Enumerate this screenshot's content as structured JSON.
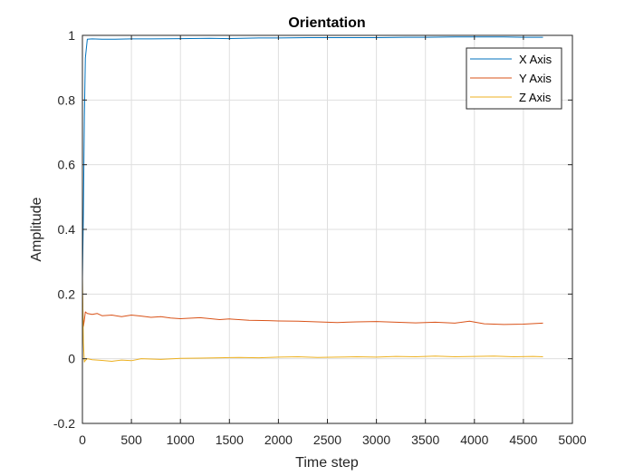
{
  "chart_data": {
    "type": "line",
    "title": "Orientation",
    "xlabel": "Time step",
    "ylabel": "Amplitude",
    "xlim": [
      0,
      5000
    ],
    "ylim": [
      -0.2,
      1
    ],
    "xticks": [
      0,
      500,
      1000,
      1500,
      2000,
      2500,
      3000,
      3500,
      4000,
      4500,
      5000
    ],
    "yticks": [
      -0.2,
      0,
      0.2,
      0.4,
      0.6,
      0.8,
      1
    ],
    "xtick_labels": [
      "0",
      "500",
      "1000",
      "1500",
      "2000",
      "2500",
      "3000",
      "3500",
      "4000",
      "4500",
      "5000"
    ],
    "ytick_labels": [
      "-0.2",
      "0",
      "0.2",
      "0.4",
      "0.6",
      "0.8",
      "1"
    ],
    "grid": true,
    "legend_position": "top-right",
    "series": [
      {
        "name": "X Axis",
        "color": "#0072BD",
        "x": [
          0,
          10,
          20,
          30,
          50,
          100,
          200,
          300,
          500,
          700,
          1000,
          1300,
          1500,
          1800,
          2000,
          2300,
          2500,
          2800,
          3000,
          3300,
          3500,
          3800,
          4000,
          4300,
          4500,
          4700
        ],
        "y": [
          0.25,
          0.45,
          0.75,
          0.93,
          0.988,
          0.989,
          0.988,
          0.988,
          0.989,
          0.989,
          0.99,
          0.991,
          0.99,
          0.992,
          0.992,
          0.993,
          0.993,
          0.993,
          0.993,
          0.994,
          0.994,
          0.995,
          0.995,
          0.995,
          0.994,
          0.994
        ]
      },
      {
        "name": "Y Axis",
        "color": "#D95319",
        "x": [
          0,
          10,
          20,
          30,
          50,
          100,
          150,
          200,
          300,
          400,
          500,
          600,
          700,
          800,
          900,
          1000,
          1200,
          1400,
          1500,
          1700,
          1900,
          2000,
          2200,
          2400,
          2600,
          2800,
          3000,
          3200,
          3400,
          3600,
          3800,
          3950,
          4100,
          4300,
          4500,
          4700
        ],
        "y": [
          0.2,
          0.1,
          0.12,
          0.145,
          0.14,
          0.137,
          0.14,
          0.133,
          0.135,
          0.13,
          0.135,
          0.132,
          0.128,
          0.13,
          0.126,
          0.124,
          0.127,
          0.121,
          0.123,
          0.119,
          0.118,
          0.117,
          0.116,
          0.114,
          0.112,
          0.114,
          0.115,
          0.113,
          0.111,
          0.113,
          0.11,
          0.116,
          0.108,
          0.106,
          0.107,
          0.11
        ]
      },
      {
        "name": "Z Axis",
        "color": "#EDB120",
        "x": [
          0,
          10,
          20,
          30,
          50,
          100,
          200,
          300,
          400,
          500,
          600,
          800,
          1000,
          1200,
          1400,
          1600,
          1800,
          2000,
          2200,
          2400,
          2600,
          2800,
          3000,
          3200,
          3400,
          3600,
          3800,
          4000,
          4200,
          4400,
          4600,
          4700
        ],
        "y": [
          0.25,
          0.05,
          -0.01,
          -0.005,
          0.0,
          -0.003,
          -0.005,
          -0.008,
          -0.004,
          -0.006,
          0.0,
          -0.002,
          0.001,
          0.002,
          0.003,
          0.004,
          0.003,
          0.005,
          0.006,
          0.004,
          0.005,
          0.006,
          0.005,
          0.007,
          0.006,
          0.008,
          0.006,
          0.007,
          0.008,
          0.006,
          0.007,
          0.006
        ]
      }
    ]
  }
}
